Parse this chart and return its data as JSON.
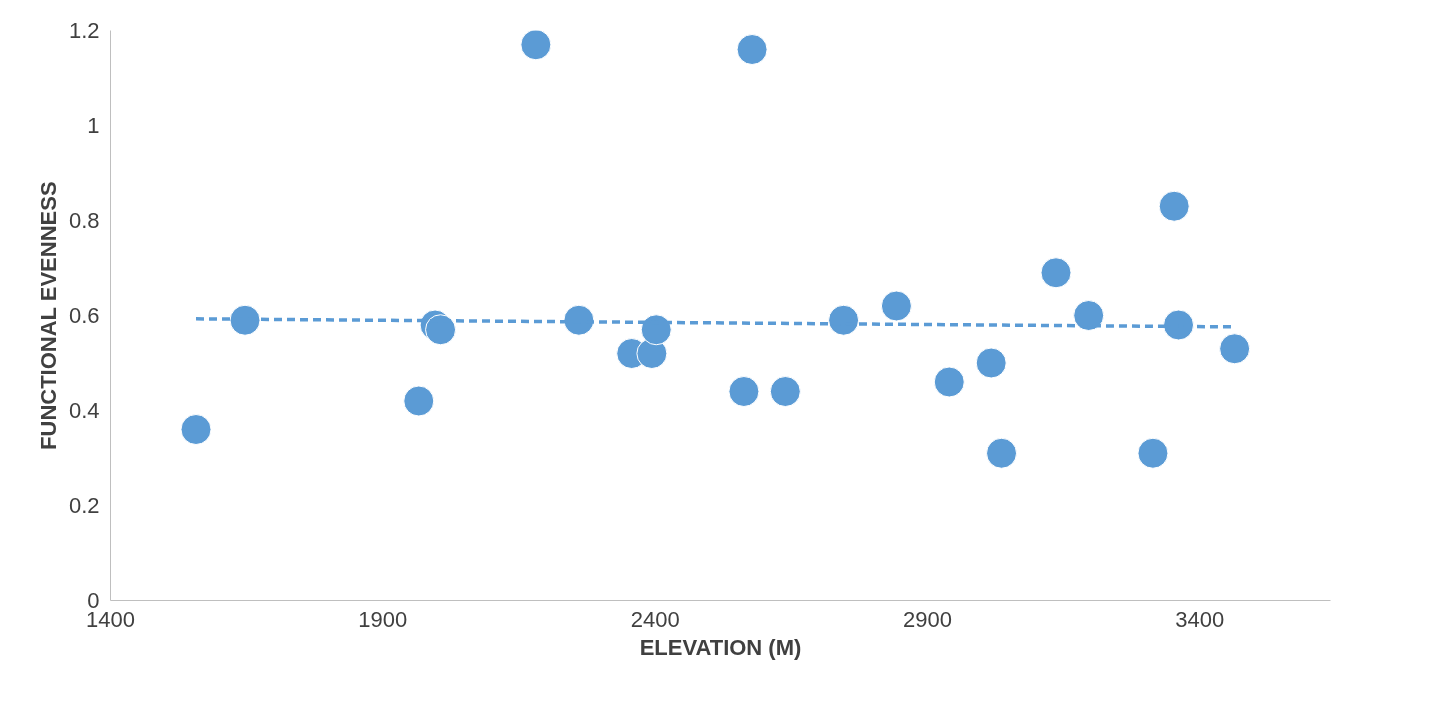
{
  "chart_data": {
    "type": "scatter",
    "xlabel": "ELEVATION (M)",
    "ylabel": "FUNCTIONAL EVENNESS",
    "xlim": [
      1400,
      3640
    ],
    "xticks": [
      1400,
      1900,
      2400,
      2900,
      3400
    ],
    "ylim": [
      0,
      1.2
    ],
    "yticks": [
      0,
      0.2,
      0.4,
      0.6,
      0.8,
      1,
      1.2
    ],
    "grid": false,
    "series": [
      {
        "marker": "circle",
        "color": "#5b9bd5",
        "x": [
          1557,
          1647,
          1966,
          1996,
          2006,
          2181,
          2260,
          2357,
          2394,
          2402,
          2563,
          2578,
          2639,
          2746,
          2843,
          2940,
          3017,
          3036,
          3136,
          3196,
          3314,
          3353,
          3361,
          3464
        ],
        "values": [
          0.36,
          0.59,
          0.42,
          0.58,
          0.57,
          1.17,
          0.59,
          0.52,
          0.52,
          0.57,
          0.44,
          1.16,
          0.44,
          0.59,
          0.62,
          0.46,
          0.5,
          0.31,
          0.69,
          0.6,
          0.31,
          0.83,
          0.58,
          0.53
        ]
      },
      {
        "type": "line",
        "color": "#5b9bd5",
        "line_style": "dashed",
        "x": [
          1557,
          3464
        ],
        "values": [
          0.593,
          0.576
        ]
      }
    ]
  }
}
